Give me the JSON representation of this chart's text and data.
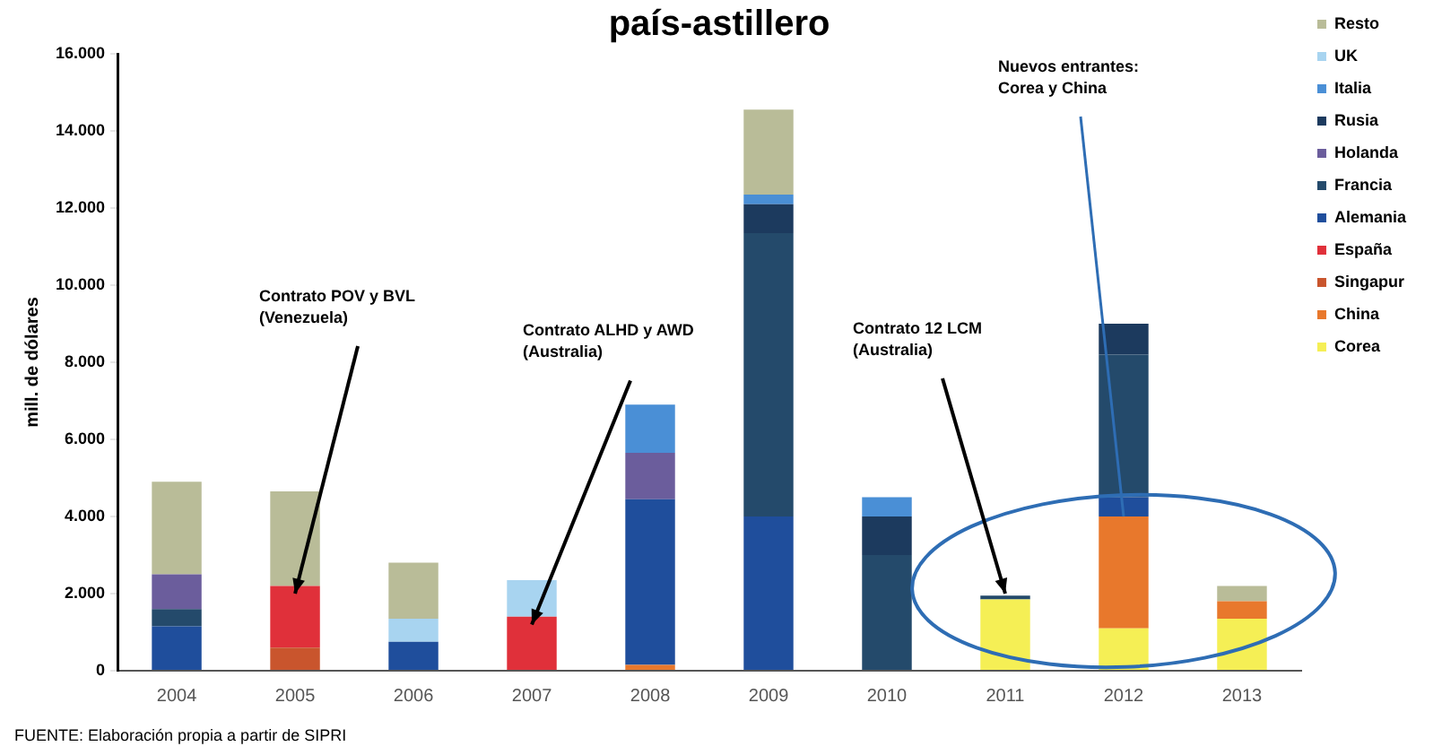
{
  "chart_data": {
    "type": "bar",
    "stacked": true,
    "title": "país-astillero",
    "ylabel": "mill. de dólares",
    "categories": [
      "2004",
      "2005",
      "2006",
      "2007",
      "2008",
      "2009",
      "2010",
      "2011",
      "2012",
      "2013"
    ],
    "series": [
      {
        "name": "Corea",
        "color": "#f5ef55",
        "values": [
          null,
          null,
          null,
          null,
          null,
          null,
          null,
          1850,
          1100,
          1350
        ]
      },
      {
        "name": "China",
        "color": "#e8782c",
        "values": [
          null,
          null,
          null,
          null,
          150,
          null,
          null,
          null,
          2900,
          450
        ]
      },
      {
        "name": "Singapur",
        "color": "#c9552d",
        "values": [
          null,
          600,
          null,
          null,
          null,
          null,
          null,
          null,
          null,
          null
        ]
      },
      {
        "name": "España",
        "color": "#e0303a",
        "values": [
          null,
          1600,
          null,
          1400,
          null,
          null,
          null,
          null,
          null,
          null
        ]
      },
      {
        "name": "Alemania",
        "color": "#1f4e9c",
        "values": [
          1150,
          null,
          750,
          null,
          4300,
          4000,
          null,
          null,
          500,
          null
        ]
      },
      {
        "name": "Francia",
        "color": "#244a6b",
        "values": [
          450,
          null,
          null,
          null,
          null,
          7350,
          3000,
          100,
          3700,
          null
        ]
      },
      {
        "name": "Holanda",
        "color": "#6b5d9c",
        "values": [
          900,
          null,
          null,
          null,
          1200,
          null,
          null,
          null,
          null,
          null
        ]
      },
      {
        "name": "Rusia",
        "color": "#1c3a5e",
        "values": [
          null,
          null,
          null,
          null,
          null,
          750,
          1000,
          null,
          800,
          null
        ]
      },
      {
        "name": "Italia",
        "color": "#4a8fd6",
        "values": [
          null,
          null,
          null,
          null,
          1250,
          250,
          500,
          null,
          null,
          null
        ]
      },
      {
        "name": "UK",
        "color": "#a8d4f0",
        "values": [
          null,
          null,
          600,
          950,
          null,
          null,
          null,
          null,
          null,
          null
        ]
      },
      {
        "name": "Resto",
        "color": "#b9bc98",
        "values": [
          2400,
          2450,
          1450,
          null,
          null,
          2200,
          null,
          null,
          null,
          400
        ]
      }
    ],
    "ylim": [
      0,
      16000
    ],
    "yticks": [
      0,
      {
        "value": 2000,
        "label": "2.000"
      },
      {
        "value": 4000,
        "label": "4.000"
      },
      {
        "value": 6000,
        "label": "6.000"
      },
      {
        "value": 8000,
        "label": "8.000"
      },
      {
        "value": 10000,
        "label": "10.000"
      },
      {
        "value": 12000,
        "label": "12.000"
      },
      {
        "value": 14000,
        "label": "14.000"
      },
      {
        "value": 16000,
        "label": "16.000"
      }
    ],
    "grid": false,
    "legend": "right",
    "annotations": [
      {
        "text": "Contrato POV y BVL (Venezuela)",
        "x": "2005",
        "y": 2000
      },
      {
        "text": "Contrato ALHD y AWD (Australia)",
        "x": "2007",
        "y": 1200
      },
      {
        "text": "Contrato 12 LCM (Australia)",
        "x": "2011",
        "y": 2000
      },
      {
        "text": "Nuevos entrantes: Corea y China",
        "x": "2012",
        "y": 4000
      },
      "FUENTE: Elaboración propia a partir de SIPRI"
    ]
  }
}
